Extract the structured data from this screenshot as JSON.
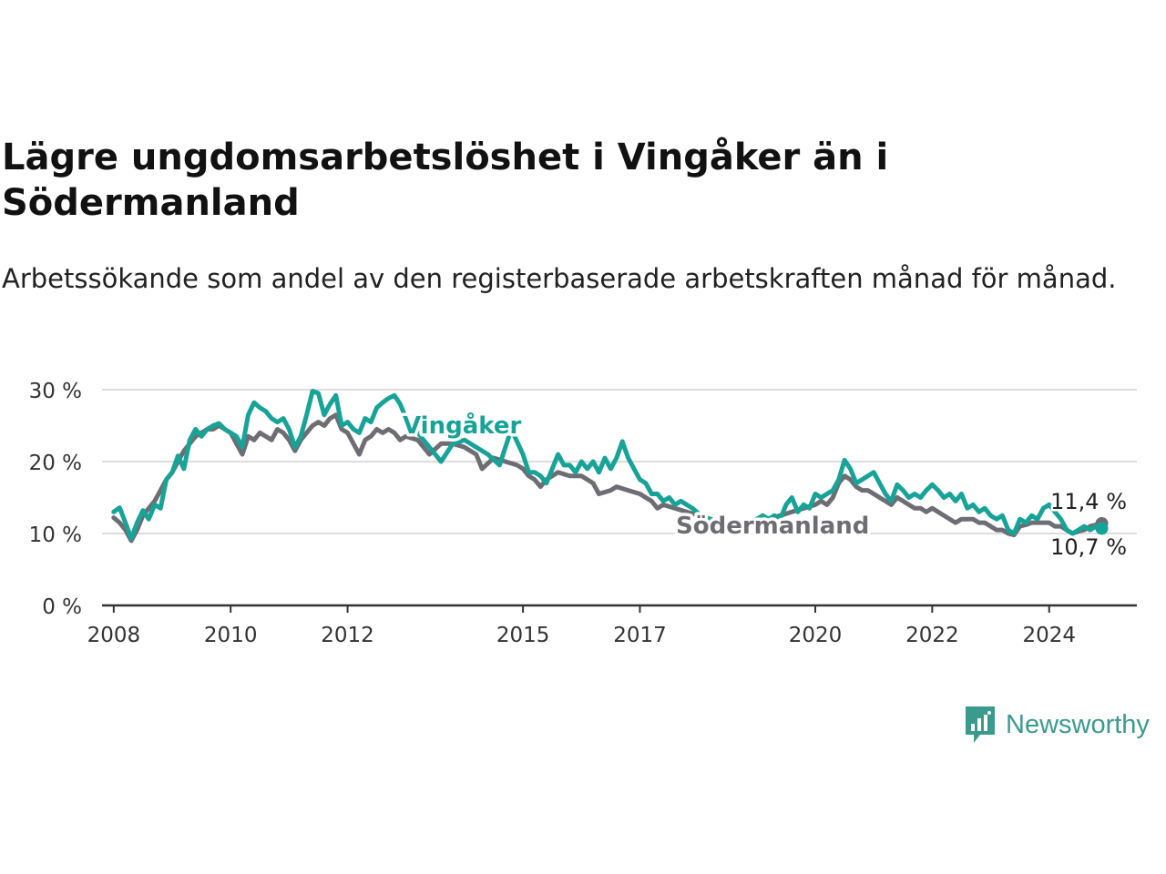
{
  "title": "Lägre ungdomsarbetslöshet i Vingåker än i Södermanland",
  "subtitle": "Arbetssökande som andel av den registerbaserade arbetskraften månad för månad.",
  "brand": {
    "name": "Newsworthy",
    "color": "#3a9a8e",
    "icon": "newsworthy-logo-icon"
  },
  "colors": {
    "vingaker": "#17a398",
    "sodermanland": "#6e6d73",
    "axis": "#333333",
    "grid": "#dddddd"
  },
  "chart_data": {
    "type": "line",
    "title": "Lägre ungdomsarbetslöshet i Vingåker än i Södermanland",
    "subtitle": "Arbetssökande som andel av den registerbaserade arbetskraften månad för månad.",
    "ylim": [
      0,
      30
    ],
    "yticks": [
      0,
      10,
      20,
      30
    ],
    "ytick_labels": [
      "0 %",
      "10 %",
      "20 %",
      "30 %"
    ],
    "xticks": [
      2008,
      2010,
      2012,
      2015,
      2017,
      2020,
      2022,
      2024
    ],
    "xtick_labels": [
      "2008",
      "2010",
      "2012",
      "2015",
      "2017",
      "2020",
      "2022",
      "2024"
    ],
    "xlim": [
      2007.8,
      2025.5
    ],
    "grid": true,
    "series": [
      {
        "name": "Vingåker",
        "color": "#17a398",
        "end_label": "10,7 %",
        "points": [
          [
            2008.0,
            13.0
          ],
          [
            2008.1,
            13.6
          ],
          [
            2008.2,
            11.5
          ],
          [
            2008.3,
            9.3
          ],
          [
            2008.4,
            11.5
          ],
          [
            2008.5,
            13.2
          ],
          [
            2008.6,
            12.0
          ],
          [
            2008.7,
            14.0
          ],
          [
            2008.8,
            13.5
          ],
          [
            2008.9,
            17.5
          ],
          [
            2009.0,
            18.5
          ],
          [
            2009.1,
            20.8
          ],
          [
            2009.2,
            19.0
          ],
          [
            2009.3,
            23.0
          ],
          [
            2009.4,
            24.5
          ],
          [
            2009.5,
            23.5
          ],
          [
            2009.6,
            24.5
          ],
          [
            2009.7,
            25.0
          ],
          [
            2009.8,
            25.3
          ],
          [
            2009.9,
            24.5
          ],
          [
            2010.0,
            24.0
          ],
          [
            2010.1,
            23.5
          ],
          [
            2010.2,
            22.0
          ],
          [
            2010.3,
            26.5
          ],
          [
            2010.4,
            28.2
          ],
          [
            2010.5,
            27.5
          ],
          [
            2010.6,
            27.0
          ],
          [
            2010.7,
            26.0
          ],
          [
            2010.8,
            25.5
          ],
          [
            2010.9,
            26.0
          ],
          [
            2011.0,
            24.5
          ],
          [
            2011.1,
            22.0
          ],
          [
            2011.2,
            23.5
          ],
          [
            2011.3,
            26.5
          ],
          [
            2011.4,
            29.8
          ],
          [
            2011.5,
            29.5
          ],
          [
            2011.6,
            26.5
          ],
          [
            2011.7,
            28.0
          ],
          [
            2011.8,
            29.2
          ],
          [
            2011.9,
            25.0
          ],
          [
            2012.0,
            25.5
          ],
          [
            2012.1,
            24.5
          ],
          [
            2012.2,
            24.0
          ],
          [
            2012.3,
            26.0
          ],
          [
            2012.4,
            25.5
          ],
          [
            2012.5,
            27.5
          ],
          [
            2012.6,
            28.2
          ],
          [
            2012.7,
            28.8
          ],
          [
            2012.8,
            29.2
          ],
          [
            2012.9,
            28.0
          ],
          [
            2013.0,
            26.0
          ],
          [
            2013.2,
            24.0
          ],
          [
            2013.4,
            22.0
          ],
          [
            2013.6,
            20.0
          ],
          [
            2013.8,
            22.5
          ],
          [
            2014.0,
            23.0
          ],
          [
            2014.2,
            22.0
          ],
          [
            2014.4,
            21.0
          ],
          [
            2014.6,
            19.5
          ],
          [
            2014.8,
            24.5
          ],
          [
            2015.0,
            21.0
          ],
          [
            2015.1,
            18.5
          ],
          [
            2015.2,
            18.5
          ],
          [
            2015.3,
            18.0
          ],
          [
            2015.4,
            17.0
          ],
          [
            2015.5,
            19.0
          ],
          [
            2015.6,
            21.0
          ],
          [
            2015.7,
            19.5
          ],
          [
            2015.8,
            19.5
          ],
          [
            2015.9,
            18.5
          ],
          [
            2016.0,
            20.0
          ],
          [
            2016.1,
            19.0
          ],
          [
            2016.2,
            20.0
          ],
          [
            2016.3,
            18.5
          ],
          [
            2016.4,
            20.5
          ],
          [
            2016.5,
            19.0
          ],
          [
            2016.6,
            20.5
          ],
          [
            2016.7,
            22.8
          ],
          [
            2016.8,
            20.5
          ],
          [
            2016.9,
            19.0
          ],
          [
            2017.0,
            17.5
          ],
          [
            2017.1,
            17.0
          ],
          [
            2017.2,
            15.5
          ],
          [
            2017.3,
            15.5
          ],
          [
            2017.4,
            14.5
          ],
          [
            2017.5,
            15.0
          ],
          [
            2017.6,
            14.0
          ],
          [
            2017.7,
            14.5
          ],
          [
            2017.8,
            14.0
          ],
          [
            2017.9,
            13.5
          ],
          [
            2018.0,
            12.8
          ],
          [
            2018.2,
            12.0
          ],
          [
            2018.4,
            11.5
          ],
          [
            2018.6,
            11.8
          ],
          [
            2018.8,
            11.5
          ],
          [
            2019.0,
            12.0
          ],
          [
            2019.1,
            12.5
          ],
          [
            2019.2,
            12.0
          ],
          [
            2019.3,
            12.5
          ],
          [
            2019.4,
            12.0
          ],
          [
            2019.5,
            14.0
          ],
          [
            2019.6,
            15.0
          ],
          [
            2019.7,
            13.0
          ],
          [
            2019.8,
            14.0
          ],
          [
            2019.9,
            13.5
          ],
          [
            2020.0,
            15.5
          ],
          [
            2020.1,
            15.0
          ],
          [
            2020.2,
            15.5
          ],
          [
            2020.3,
            16.0
          ],
          [
            2020.4,
            17.5
          ],
          [
            2020.5,
            20.2
          ],
          [
            2020.6,
            19.0
          ],
          [
            2020.7,
            17.0
          ],
          [
            2020.8,
            17.5
          ],
          [
            2020.9,
            18.0
          ],
          [
            2021.0,
            18.5
          ],
          [
            2021.1,
            17.0
          ],
          [
            2021.2,
            15.5
          ],
          [
            2021.3,
            14.5
          ],
          [
            2021.4,
            16.8
          ],
          [
            2021.5,
            16.0
          ],
          [
            2021.6,
            15.0
          ],
          [
            2021.7,
            15.5
          ],
          [
            2021.8,
            15.0
          ],
          [
            2021.9,
            16.0
          ],
          [
            2022.0,
            16.8
          ],
          [
            2022.1,
            16.0
          ],
          [
            2022.2,
            15.0
          ],
          [
            2022.3,
            15.5
          ],
          [
            2022.4,
            14.5
          ],
          [
            2022.5,
            15.5
          ],
          [
            2022.6,
            13.5
          ],
          [
            2022.7,
            14.0
          ],
          [
            2022.8,
            13.0
          ],
          [
            2022.9,
            13.5
          ],
          [
            2023.0,
            12.5
          ],
          [
            2023.1,
            12.0
          ],
          [
            2023.2,
            12.5
          ],
          [
            2023.3,
            10.5
          ],
          [
            2023.4,
            10.0
          ],
          [
            2023.5,
            12.0
          ],
          [
            2023.6,
            11.5
          ],
          [
            2023.7,
            12.5
          ],
          [
            2023.8,
            12.0
          ],
          [
            2023.9,
            13.5
          ],
          [
            2024.0,
            14.0
          ],
          [
            2024.1,
            13.0
          ],
          [
            2024.2,
            12.0
          ],
          [
            2024.3,
            10.5
          ],
          [
            2024.4,
            10.0
          ],
          [
            2024.5,
            10.5
          ],
          [
            2024.6,
            11.0
          ],
          [
            2024.7,
            10.5
          ],
          [
            2024.8,
            11.0
          ],
          [
            2024.9,
            10.7
          ]
        ]
      },
      {
        "name": "Södermanland",
        "color": "#6e6d73",
        "end_label": "11,4 %",
        "points": [
          [
            2008.0,
            12.2
          ],
          [
            2008.1,
            11.5
          ],
          [
            2008.2,
            10.5
          ],
          [
            2008.3,
            9.0
          ],
          [
            2008.4,
            10.5
          ],
          [
            2008.5,
            12.5
          ],
          [
            2008.6,
            13.5
          ],
          [
            2008.7,
            14.5
          ],
          [
            2008.8,
            16.0
          ],
          [
            2008.9,
            17.5
          ],
          [
            2009.0,
            18.5
          ],
          [
            2009.1,
            20.0
          ],
          [
            2009.2,
            21.5
          ],
          [
            2009.3,
            22.5
          ],
          [
            2009.4,
            23.5
          ],
          [
            2009.5,
            24.0
          ],
          [
            2009.6,
            24.5
          ],
          [
            2009.7,
            24.5
          ],
          [
            2009.8,
            25.0
          ],
          [
            2009.9,
            24.5
          ],
          [
            2010.0,
            24.0
          ],
          [
            2010.1,
            22.5
          ],
          [
            2010.2,
            21.0
          ],
          [
            2010.3,
            23.5
          ],
          [
            2010.4,
            23.0
          ],
          [
            2010.5,
            24.0
          ],
          [
            2010.6,
            23.5
          ],
          [
            2010.7,
            23.0
          ],
          [
            2010.8,
            24.5
          ],
          [
            2010.9,
            24.0
          ],
          [
            2011.0,
            23.0
          ],
          [
            2011.1,
            21.5
          ],
          [
            2011.2,
            23.0
          ],
          [
            2011.3,
            24.0
          ],
          [
            2011.4,
            25.0
          ],
          [
            2011.5,
            25.5
          ],
          [
            2011.6,
            25.0
          ],
          [
            2011.7,
            26.0
          ],
          [
            2011.8,
            26.5
          ],
          [
            2011.9,
            24.5
          ],
          [
            2012.0,
            24.0
          ],
          [
            2012.1,
            22.5
          ],
          [
            2012.2,
            21.0
          ],
          [
            2012.3,
            23.0
          ],
          [
            2012.4,
            23.5
          ],
          [
            2012.5,
            24.5
          ],
          [
            2012.6,
            24.0
          ],
          [
            2012.7,
            24.5
          ],
          [
            2012.8,
            24.0
          ],
          [
            2012.9,
            23.0
          ],
          [
            2013.0,
            23.5
          ],
          [
            2013.2,
            23.0
          ],
          [
            2013.4,
            21.0
          ],
          [
            2013.6,
            22.5
          ],
          [
            2013.8,
            22.5
          ],
          [
            2014.0,
            22.0
          ],
          [
            2014.2,
            21.0
          ],
          [
            2014.3,
            19.0
          ],
          [
            2014.5,
            20.5
          ],
          [
            2014.7,
            20.0
          ],
          [
            2014.9,
            19.5
          ],
          [
            2015.0,
            19.0
          ],
          [
            2015.1,
            18.0
          ],
          [
            2015.2,
            17.5
          ],
          [
            2015.3,
            16.5
          ],
          [
            2015.4,
            17.5
          ],
          [
            2015.6,
            18.5
          ],
          [
            2015.8,
            18.0
          ],
          [
            2016.0,
            18.0
          ],
          [
            2016.2,
            17.0
          ],
          [
            2016.3,
            15.5
          ],
          [
            2016.5,
            16.0
          ],
          [
            2016.6,
            16.5
          ],
          [
            2016.8,
            16.0
          ],
          [
            2017.0,
            15.5
          ],
          [
            2017.1,
            15.0
          ],
          [
            2017.2,
            14.5
          ],
          [
            2017.3,
            13.5
          ],
          [
            2017.4,
            14.0
          ],
          [
            2017.6,
            13.5
          ],
          [
            2017.8,
            13.0
          ],
          [
            2018.0,
            12.5
          ],
          [
            2018.2,
            12.0
          ],
          [
            2018.4,
            11.5
          ],
          [
            2018.6,
            11.5
          ],
          [
            2018.8,
            11.5
          ],
          [
            2019.0,
            12.0
          ],
          [
            2019.2,
            12.0
          ],
          [
            2019.4,
            12.5
          ],
          [
            2019.6,
            13.0
          ],
          [
            2019.8,
            13.5
          ],
          [
            2020.0,
            14.0
          ],
          [
            2020.1,
            14.5
          ],
          [
            2020.2,
            14.0
          ],
          [
            2020.3,
            15.0
          ],
          [
            2020.4,
            17.0
          ],
          [
            2020.5,
            18.0
          ],
          [
            2020.6,
            17.5
          ],
          [
            2020.7,
            16.5
          ],
          [
            2020.8,
            16.0
          ],
          [
            2020.9,
            16.0
          ],
          [
            2021.0,
            15.5
          ],
          [
            2021.1,
            15.0
          ],
          [
            2021.2,
            14.5
          ],
          [
            2021.3,
            14.0
          ],
          [
            2021.4,
            15.0
          ],
          [
            2021.5,
            14.5
          ],
          [
            2021.6,
            14.0
          ],
          [
            2021.7,
            13.5
          ],
          [
            2021.8,
            13.5
          ],
          [
            2021.9,
            13.0
          ],
          [
            2022.0,
            13.5
          ],
          [
            2022.1,
            13.0
          ],
          [
            2022.2,
            12.5
          ],
          [
            2022.3,
            12.0
          ],
          [
            2022.4,
            11.5
          ],
          [
            2022.5,
            12.0
          ],
          [
            2022.6,
            12.0
          ],
          [
            2022.7,
            12.0
          ],
          [
            2022.8,
            11.5
          ],
          [
            2022.9,
            11.5
          ],
          [
            2023.0,
            11.0
          ],
          [
            2023.1,
            10.5
          ],
          [
            2023.2,
            10.5
          ],
          [
            2023.3,
            10.0
          ],
          [
            2023.4,
            9.8
          ],
          [
            2023.5,
            11.0
          ],
          [
            2023.6,
            11.2
          ],
          [
            2023.7,
            11.5
          ],
          [
            2023.8,
            11.5
          ],
          [
            2023.9,
            11.5
          ],
          [
            2024.0,
            11.5
          ],
          [
            2024.1,
            11.0
          ],
          [
            2024.2,
            11.0
          ],
          [
            2024.3,
            10.5
          ],
          [
            2024.4,
            10.0
          ],
          [
            2024.5,
            10.3
          ],
          [
            2024.6,
            10.5
          ],
          [
            2024.7,
            11.0
          ],
          [
            2024.8,
            11.2
          ],
          [
            2024.9,
            11.4
          ]
        ]
      }
    ]
  }
}
